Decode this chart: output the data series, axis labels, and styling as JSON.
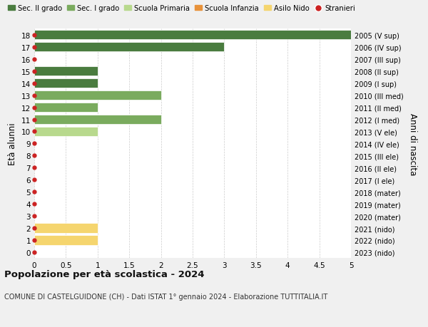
{
  "ages": [
    18,
    17,
    16,
    15,
    14,
    13,
    12,
    11,
    10,
    9,
    8,
    7,
    6,
    5,
    4,
    3,
    2,
    1,
    0
  ],
  "right_labels": [
    "2005 (V sup)",
    "2006 (IV sup)",
    "2007 (III sup)",
    "2008 (II sup)",
    "2009 (I sup)",
    "2010 (III med)",
    "2011 (II med)",
    "2012 (I med)",
    "2013 (V ele)",
    "2014 (IV ele)",
    "2015 (III ele)",
    "2016 (II ele)",
    "2017 (I ele)",
    "2018 (mater)",
    "2019 (mater)",
    "2020 (mater)",
    "2021 (nido)",
    "2022 (nido)",
    "2023 (nido)"
  ],
  "bars": [
    {
      "age": 18,
      "value": 5.0,
      "color": "#4a7c3f",
      "type": "sec2"
    },
    {
      "age": 17,
      "value": 3.0,
      "color": "#4a7c3f",
      "type": "sec2"
    },
    {
      "age": 16,
      "value": 0,
      "color": "#4a7c3f",
      "type": "sec2"
    },
    {
      "age": 15,
      "value": 1.0,
      "color": "#4a7c3f",
      "type": "sec2"
    },
    {
      "age": 14,
      "value": 1.0,
      "color": "#4a7c3f",
      "type": "sec2"
    },
    {
      "age": 13,
      "value": 2.0,
      "color": "#7aab5e",
      "type": "sec1"
    },
    {
      "age": 12,
      "value": 1.0,
      "color": "#7aab5e",
      "type": "sec1"
    },
    {
      "age": 11,
      "value": 2.0,
      "color": "#7aab5e",
      "type": "sec1"
    },
    {
      "age": 10,
      "value": 1.0,
      "color": "#b8d98d",
      "type": "primaria"
    },
    {
      "age": 9,
      "value": 0,
      "color": "#b8d98d",
      "type": "primaria"
    },
    {
      "age": 8,
      "value": 0,
      "color": "#b8d98d",
      "type": "primaria"
    },
    {
      "age": 7,
      "value": 0,
      "color": "#b8d98d",
      "type": "primaria"
    },
    {
      "age": 6,
      "value": 0,
      "color": "#b8d98d",
      "type": "primaria"
    },
    {
      "age": 5,
      "value": 0,
      "color": "#e8923a",
      "type": "infanzia"
    },
    {
      "age": 4,
      "value": 0,
      "color": "#e8923a",
      "type": "infanzia"
    },
    {
      "age": 3,
      "value": 0,
      "color": "#e8923a",
      "type": "infanzia"
    },
    {
      "age": 2,
      "value": 1.0,
      "color": "#f5d56e",
      "type": "nido"
    },
    {
      "age": 1,
      "value": 1.0,
      "color": "#f5d56e",
      "type": "nido"
    },
    {
      "age": 0,
      "value": 0,
      "color": "#f5d56e",
      "type": "nido"
    }
  ],
  "stranieri_dots": [
    18,
    17,
    16,
    15,
    14,
    13,
    12,
    11,
    10,
    9,
    8,
    7,
    6,
    5,
    4,
    3,
    2,
    1,
    0
  ],
  "colors": {
    "sec2": "#4a7c3f",
    "sec1": "#7aab5e",
    "primaria": "#b8d98d",
    "infanzia": "#e8923a",
    "nido": "#f5d56e",
    "stranieri": "#cc2222"
  },
  "legend_labels": [
    "Sec. II grado",
    "Sec. I grado",
    "Scuola Primaria",
    "Scuola Infanzia",
    "Asilo Nido",
    "Stranieri"
  ],
  "left_ylabel": "Età alunni",
  "right_ylabel": "Anni di nascita",
  "xlim": [
    0,
    5.0
  ],
  "xticks": [
    0,
    0.5,
    1.0,
    1.5,
    2.0,
    2.5,
    3.0,
    3.5,
    4.0,
    4.5,
    5.0
  ],
  "title": "Popolazione per età scolastica - 2024",
  "subtitle": "COMUNE DI CASTELGUIDONE (CH) - Dati ISTAT 1° gennaio 2024 - Elaborazione TUTTITALIA.IT",
  "bg_color": "#f0f0f0",
  "plot_bg_color": "#ffffff"
}
